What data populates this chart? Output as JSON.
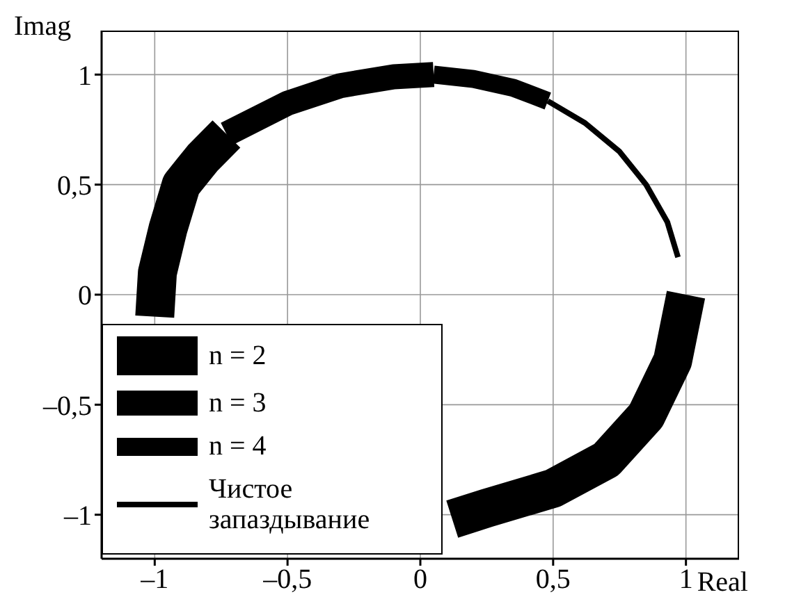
{
  "chart_data": {
    "type": "line",
    "xlabel": "Real",
    "ylabel": "Imag",
    "xlim": [
      -1.2,
      1.2
    ],
    "ylim": [
      -1.2,
      1.2
    ],
    "xticks": [
      {
        "value": -1,
        "label": "–1"
      },
      {
        "value": -0.5,
        "label": "–0,5"
      },
      0,
      {
        "value": 0.5,
        "label": "0,5"
      },
      1
    ],
    "yticks": [
      {
        "value": -1,
        "label": "–1"
      },
      {
        "value": -0.5,
        "label": "–0,5"
      },
      0,
      {
        "value": 0.5,
        "label": "0,5"
      },
      1
    ],
    "grid": true,
    "legend": "bottom left",
    "marker": "none",
    "line_style": "solid",
    "series": [
      {
        "name": "n = 2",
        "color": "#000000",
        "x": [
          -0.73,
          -0.82,
          -0.9,
          -0.95,
          -0.99,
          -1.0,
          -0.5,
          0.12,
          0.25,
          0.5,
          0.7,
          0.85,
          0.95,
          1.0
        ],
        "values": [
          0.73,
          0.62,
          0.5,
          0.3,
          0.1,
          -0.1,
          null,
          -1.02,
          -0.97,
          -0.88,
          -0.75,
          -0.55,
          -0.3,
          0.0
        ]
      },
      {
        "name": "n = 3",
        "color": "#000000",
        "x": [
          -0.73,
          -0.5,
          -0.3,
          -0.1,
          0.05
        ],
        "values": [
          0.73,
          0.87,
          0.95,
          0.99,
          1.0
        ]
      },
      {
        "name": "n = 4",
        "color": "#000000",
        "x": [
          0.05,
          0.2,
          0.35,
          0.48
        ],
        "values": [
          1.0,
          0.98,
          0.94,
          0.88
        ]
      },
      {
        "name": "Чистое запаздывание",
        "color": "#000000",
        "x": [
          0.48,
          0.62,
          0.75,
          0.85,
          0.93,
          0.97
        ],
        "values": [
          0.88,
          0.78,
          0.65,
          0.5,
          0.33,
          0.17
        ]
      }
    ]
  }
}
